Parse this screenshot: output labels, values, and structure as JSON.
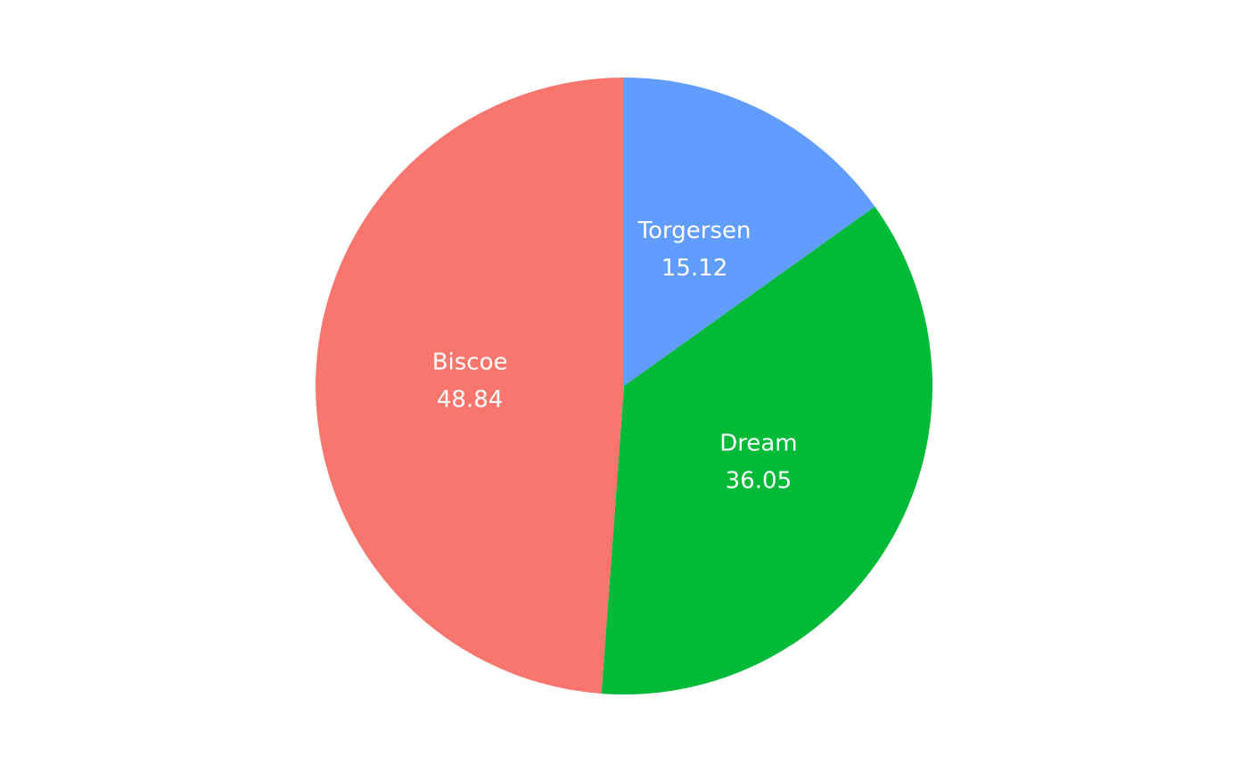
{
  "chart_data": {
    "type": "pie",
    "title": "",
    "legend": "none",
    "start_angle_deg": 0,
    "direction": "clockwise",
    "slices": [
      {
        "label": "Torgersen",
        "value": 15.12,
        "value_label": "15.12",
        "color": "#619CFF"
      },
      {
        "label": "Dream",
        "value": 36.05,
        "value_label": "36.05",
        "color": "#00BA38"
      },
      {
        "label": "Biscoe",
        "value": 48.84,
        "value_label": "48.84",
        "color": "#F8766D"
      }
    ]
  }
}
